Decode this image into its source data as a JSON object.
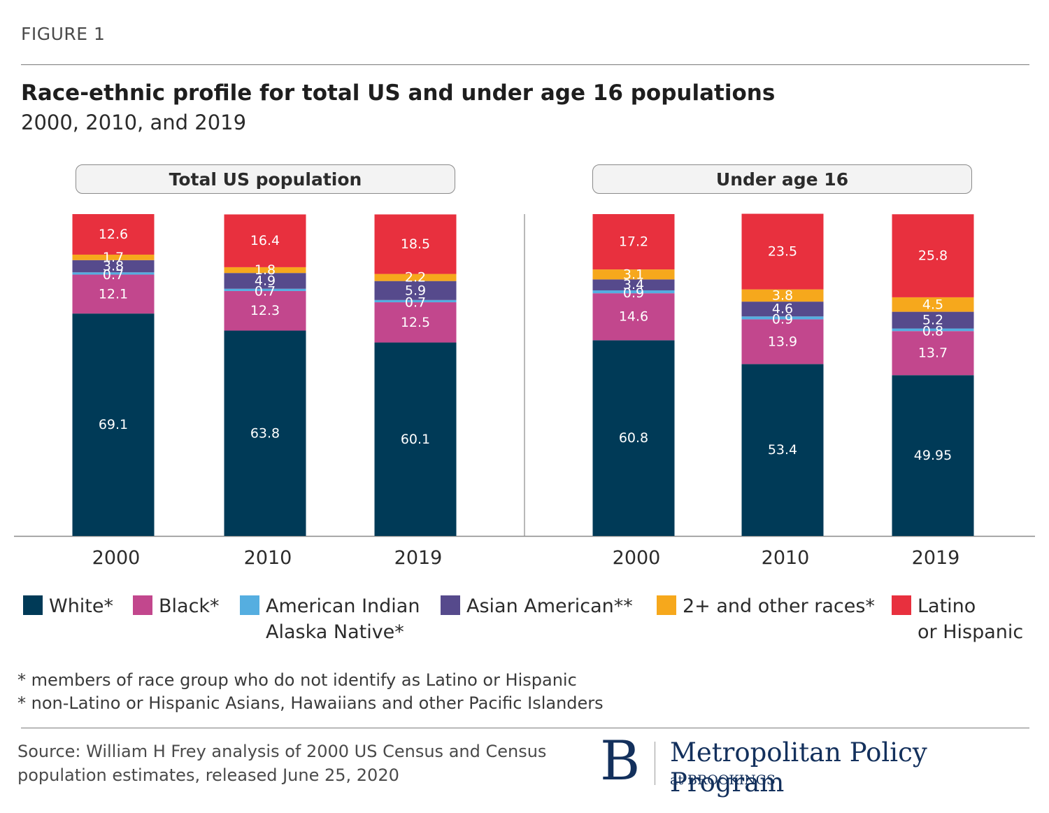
{
  "figure_label": "FIGURE 1",
  "title": "Race-ethnic profile for total US and under age 16 populations",
  "subtitle": "2000, 2010, and 2019",
  "chart_data": {
    "type": "bar",
    "stacked": true,
    "title": "Race-ethnic profile for total US and under age 16 populations",
    "subtitle": "2000, 2010, and 2019",
    "ylim": [
      0,
      100
    ],
    "panels": [
      {
        "label": "Total US population",
        "categories": [
          "2000",
          "2010",
          "2019"
        ],
        "series": [
          {
            "name": "White*",
            "values": [
              69.1,
              63.8,
              60.1
            ]
          },
          {
            "name": "Black*",
            "values": [
              12.1,
              12.3,
              12.5
            ]
          },
          {
            "name": "American Indian Alaska Native*",
            "values": [
              0.7,
              0.7,
              0.7
            ]
          },
          {
            "name": "Asian American**",
            "values": [
              3.8,
              4.9,
              5.9
            ]
          },
          {
            "name": "2+ and other races*",
            "values": [
              1.7,
              1.8,
              2.2
            ]
          },
          {
            "name": "Latino or Hispanic",
            "values": [
              12.6,
              16.4,
              18.5
            ]
          }
        ]
      },
      {
        "label": "Under age 16",
        "categories": [
          "2000",
          "2010",
          "2019"
        ],
        "series": [
          {
            "name": "White*",
            "values": [
              60.8,
              53.4,
              49.95
            ]
          },
          {
            "name": "Black*",
            "values": [
              14.6,
              13.9,
              13.7
            ]
          },
          {
            "name": "American Indian Alaska Native*",
            "values": [
              0.9,
              0.9,
              0.8
            ]
          },
          {
            "name": "Asian American**",
            "values": [
              3.4,
              4.6,
              5.2
            ]
          },
          {
            "name": "2+ and other races*",
            "values": [
              3.1,
              3.8,
              4.5
            ]
          },
          {
            "name": "Latino or Hispanic",
            "values": [
              17.2,
              23.5,
              25.8
            ]
          }
        ]
      }
    ],
    "colors": [
      "#003a57",
      "#c2478d",
      "#55aee0",
      "#564a8c",
      "#f6a81c",
      "#e8303e"
    ],
    "label_colors": [
      "#ffffff",
      "#ffffff",
      "#ffffff",
      "#ffffff",
      "#ffffff",
      "#ffffff"
    ]
  },
  "legend": [
    {
      "line1": "White*",
      "line2": "",
      "color": "#003a57"
    },
    {
      "line1": "Black*",
      "line2": "",
      "color": "#c2478d"
    },
    {
      "line1": "American Indian",
      "line2": "Alaska Native*",
      "color": "#55aee0"
    },
    {
      "line1": "Asian American**",
      "line2": "",
      "color": "#564a8c"
    },
    {
      "line1": "2+ and other races*",
      "line2": "",
      "color": "#f6a81c"
    },
    {
      "line1": "Latino",
      "line2": "or Hispanic",
      "color": "#e8303e"
    }
  ],
  "footnotes": [
    "* members of race group who do not identify as Latino or Hispanic",
    "* non-Latino or Hispanic Asians, Hawaiians and other Pacific Islanders"
  ],
  "source_line1": "Source: William H Frey analysis of 2000 US Census and Census",
  "source_line2": "population estimates, released June 25, 2020",
  "logo": {
    "letter": "B",
    "main": "Metropolitan Policy Program",
    "sub": "at BROOKINGS"
  }
}
